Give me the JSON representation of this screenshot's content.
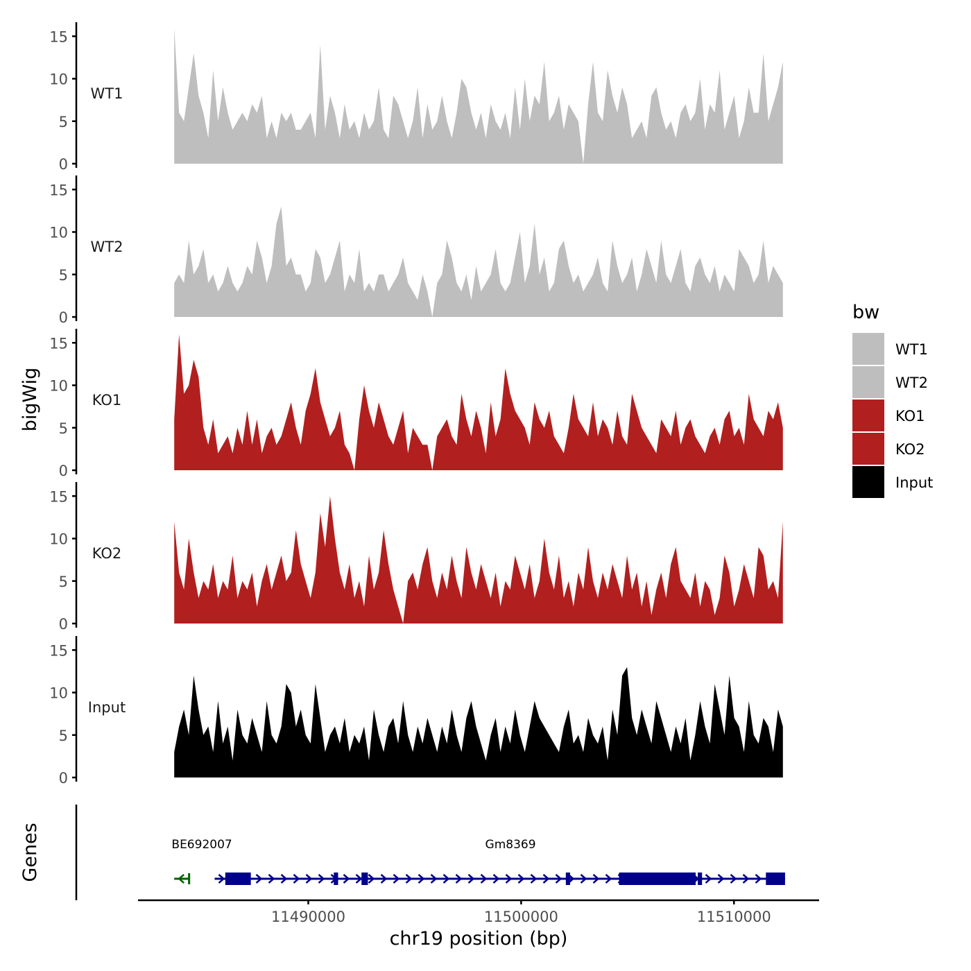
{
  "chart_data": {
    "type": "area",
    "genome_track": true,
    "xlabel": "chr19 position (bp)",
    "ylabel": "bigWig",
    "genes_label": "Genes",
    "x_ticks": [
      11490000,
      11500000,
      11510000
    ],
    "x_tick_labels": [
      "11490000",
      "11500000",
      "11510000"
    ],
    "xlim": [
      11482000,
      11514000
    ],
    "data_range": [
      11483700,
      11512300
    ],
    "ylim": [
      0,
      16
    ],
    "y_ticks": [
      0,
      5,
      10,
      15
    ],
    "y_tick_labels": [
      "0",
      "5",
      "10",
      "15"
    ],
    "legend": {
      "title": "bw",
      "position": "right",
      "items": [
        {
          "label": "WT1",
          "color": "#bebebe"
        },
        {
          "label": "WT2",
          "color": "#bebebe"
        },
        {
          "label": "KO1",
          "color": "#b21f1f"
        },
        {
          "label": "KO2",
          "color": "#b21f1f"
        },
        {
          "label": "Input",
          "color": "#000000"
        }
      ]
    },
    "series": [
      {
        "name": "WT1",
        "color": "#bebebe",
        "values": [
          16,
          6,
          5,
          9,
          13,
          8,
          6,
          3,
          11,
          5,
          9,
          6,
          4,
          5,
          6,
          5,
          7,
          6,
          8,
          3,
          5,
          3,
          6,
          5,
          6,
          4,
          4,
          5,
          6,
          3,
          14,
          4,
          8,
          6,
          3,
          7,
          4,
          5,
          3,
          6,
          4,
          5,
          9,
          4,
          3,
          8,
          7,
          5,
          3,
          5,
          9,
          3,
          7,
          4,
          5,
          8,
          5,
          3,
          6,
          10,
          9,
          6,
          4,
          6,
          3,
          7,
          5,
          4,
          6,
          3,
          9,
          4,
          10,
          5,
          8,
          7,
          12,
          5,
          6,
          8,
          4,
          7,
          6,
          5,
          0,
          7,
          12,
          6,
          5,
          11,
          8,
          6,
          9,
          7,
          3,
          4,
          5,
          3,
          8,
          9,
          6,
          4,
          5,
          3,
          6,
          7,
          5,
          6,
          10,
          4,
          7,
          6,
          11,
          4,
          6,
          8,
          3,
          5,
          9,
          6,
          6,
          13,
          5,
          7,
          9,
          12
        ]
      },
      {
        "name": "WT2",
        "color": "#bebebe",
        "values": [
          4,
          5,
          4,
          9,
          5,
          6,
          8,
          4,
          5,
          3,
          4,
          6,
          4,
          3,
          4,
          6,
          5,
          9,
          7,
          4,
          6,
          11,
          13,
          6,
          7,
          5,
          5,
          3,
          4,
          8,
          7,
          4,
          5,
          7,
          9,
          3,
          5,
          4,
          8,
          3,
          4,
          3,
          5,
          5,
          3,
          4,
          5,
          7,
          4,
          3,
          2,
          5,
          3,
          0,
          4,
          5,
          9,
          7,
          4,
          3,
          5,
          2,
          6,
          3,
          4,
          5,
          8,
          4,
          3,
          4,
          7,
          10,
          4,
          6,
          11,
          5,
          7,
          3,
          4,
          8,
          9,
          6,
          4,
          5,
          3,
          4,
          5,
          7,
          4,
          3,
          9,
          6,
          4,
          5,
          7,
          3,
          5,
          8,
          6,
          4,
          9,
          5,
          4,
          6,
          8,
          4,
          3,
          6,
          7,
          5,
          4,
          6,
          3,
          5,
          4,
          3,
          8,
          7,
          6,
          4,
          5,
          9,
          4,
          6,
          5,
          4
        ]
      },
      {
        "name": "KO1",
        "color": "#b21f1f",
        "values": [
          6,
          16,
          9,
          10,
          13,
          11,
          5,
          3,
          6,
          2,
          3,
          4,
          2,
          5,
          3,
          7,
          3,
          6,
          2,
          4,
          5,
          3,
          4,
          6,
          8,
          5,
          3,
          7,
          9,
          12,
          8,
          6,
          4,
          5,
          7,
          3,
          2,
          0,
          6,
          10,
          7,
          5,
          8,
          6,
          4,
          3,
          5,
          7,
          2,
          5,
          4,
          3,
          3,
          0,
          4,
          5,
          6,
          4,
          3,
          9,
          6,
          4,
          7,
          5,
          2,
          8,
          4,
          6,
          12,
          9,
          7,
          6,
          5,
          3,
          8,
          6,
          5,
          7,
          4,
          3,
          2,
          5,
          9,
          6,
          5,
          4,
          8,
          4,
          6,
          5,
          3,
          7,
          4,
          3,
          9,
          7,
          5,
          4,
          3,
          2,
          6,
          5,
          4,
          7,
          3,
          5,
          6,
          4,
          3,
          2,
          4,
          5,
          3,
          6,
          7,
          4,
          5,
          3,
          9,
          6,
          5,
          4,
          7,
          6,
          8,
          5
        ]
      },
      {
        "name": "KO2",
        "color": "#b21f1f",
        "values": [
          12,
          6,
          4,
          10,
          6,
          3,
          5,
          4,
          7,
          3,
          5,
          4,
          8,
          3,
          5,
          4,
          6,
          2,
          5,
          7,
          4,
          6,
          8,
          5,
          6,
          11,
          7,
          5,
          3,
          6,
          13,
          9,
          15,
          10,
          6,
          4,
          7,
          3,
          5,
          2,
          8,
          4,
          6,
          11,
          7,
          4,
          2,
          0,
          5,
          6,
          4,
          7,
          9,
          5,
          3,
          6,
          4,
          8,
          5,
          3,
          9,
          6,
          4,
          7,
          5,
          3,
          6,
          2,
          5,
          4,
          8,
          6,
          4,
          7,
          3,
          5,
          10,
          6,
          4,
          8,
          3,
          5,
          2,
          6,
          4,
          9,
          5,
          3,
          6,
          4,
          7,
          5,
          3,
          8,
          4,
          6,
          2,
          5,
          1,
          4,
          6,
          3,
          7,
          9,
          5,
          4,
          3,
          6,
          2,
          5,
          4,
          1,
          3,
          8,
          6,
          2,
          4,
          7,
          5,
          3,
          9,
          8,
          4,
          5,
          3,
          12
        ]
      },
      {
        "name": "Input",
        "color": "#000000",
        "values": [
          3,
          6,
          8,
          5,
          12,
          8,
          5,
          6,
          3,
          9,
          4,
          6,
          2,
          8,
          5,
          4,
          7,
          5,
          3,
          9,
          5,
          4,
          6,
          11,
          10,
          6,
          8,
          5,
          4,
          11,
          7,
          3,
          5,
          6,
          4,
          7,
          3,
          5,
          4,
          6,
          2,
          8,
          5,
          3,
          6,
          7,
          4,
          9,
          5,
          3,
          6,
          4,
          7,
          5,
          3,
          6,
          4,
          8,
          5,
          3,
          7,
          9,
          6,
          4,
          2,
          5,
          7,
          3,
          6,
          4,
          8,
          5,
          3,
          6,
          9,
          7,
          6,
          5,
          4,
          3,
          6,
          8,
          4,
          5,
          3,
          7,
          5,
          4,
          6,
          2,
          8,
          5,
          12,
          13,
          7,
          5,
          8,
          6,
          4,
          9,
          7,
          5,
          3,
          6,
          4,
          7,
          2,
          5,
          9,
          6,
          4,
          11,
          8,
          5,
          12,
          7,
          6,
          3,
          9,
          5,
          4,
          7,
          6,
          3,
          8,
          6
        ]
      }
    ],
    "genes": [
      {
        "name": "BE692007",
        "color": "#006400",
        "strand": "-",
        "start": 11483700,
        "end": 11484400,
        "label_pos": 11485000,
        "exons": []
      },
      {
        "name": "Gm8369",
        "color": "#00008b",
        "strand": "+",
        "start": 11485600,
        "end": 11512400,
        "label_pos": 11499500,
        "exons": [
          [
            11486100,
            11487300
          ],
          [
            11491200,
            11491400
          ],
          [
            11492500,
            11492800
          ],
          [
            11502100,
            11502300
          ],
          [
            11504600,
            11508200
          ],
          [
            11508300,
            11508500
          ],
          [
            11511500,
            11512400
          ]
        ]
      }
    ]
  }
}
